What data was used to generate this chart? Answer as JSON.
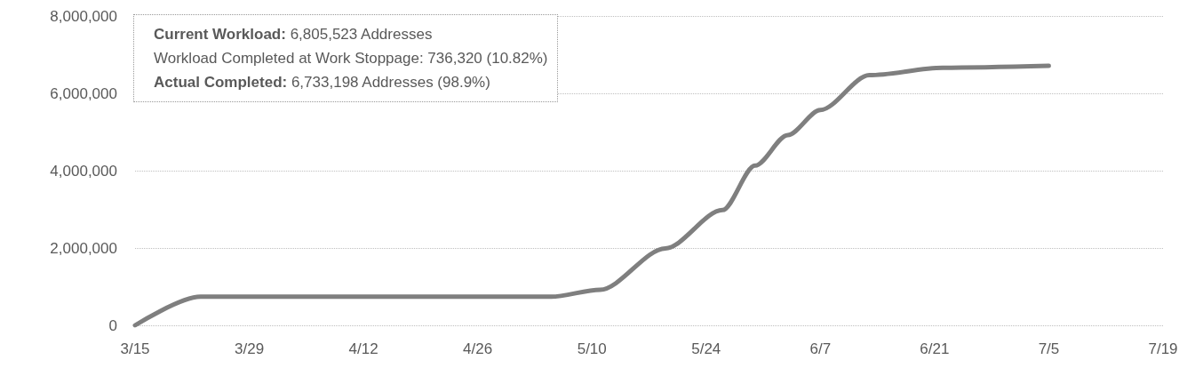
{
  "chart_data": {
    "type": "line",
    "color": "#7f7f7f",
    "x": [
      "--03-15",
      "--03-23",
      "--05-05",
      "--05-11",
      "--05-19",
      "--05-26",
      "--05-30",
      "--06-03",
      "--06-07",
      "--06-13",
      "--06-22",
      "--07-05"
    ],
    "values": [
      0,
      740000,
      740000,
      920000,
      1990000,
      2980000,
      4130000,
      4920000,
      5570000,
      6470000,
      6660000,
      6710000
    ],
    "xlim": [
      "--03-15",
      "--07-19"
    ],
    "xticks": [
      {
        "value": "--03-15",
        "label": "3/15"
      },
      {
        "value": "--03-29",
        "label": "3/29"
      },
      {
        "value": "--04-12",
        "label": "4/12"
      },
      {
        "value": "--04-26",
        "label": "4/26"
      },
      {
        "value": "--05-10",
        "label": "5/10"
      },
      {
        "value": "--05-24",
        "label": "5/24"
      },
      {
        "value": "--06-07",
        "label": "6/7"
      },
      {
        "value": "--06-21",
        "label": "6/21"
      },
      {
        "value": "--07-05",
        "label": "7/5"
      },
      {
        "value": "--07-19",
        "label": "7/19"
      }
    ],
    "ylim": [
      0,
      8000000
    ],
    "yticks": [
      0,
      {
        "value": 2000000,
        "label": "2,000,000"
      },
      {
        "value": 4000000,
        "label": "4,000,000"
      },
      {
        "value": 6000000,
        "label": "6,000,000"
      },
      {
        "value": 8000000,
        "label": "8,000,000"
      }
    ],
    "grid": "y",
    "marker": "none",
    "line_style": "solid",
    "annotations": [
      "Current Workload: 6,805,523 Addresses",
      "Workload Completed at Work Stoppage: 736,320 (10.82%)",
      "Actual Completed: 6,733,198 Addresses (98.9%)"
    ]
  }
}
